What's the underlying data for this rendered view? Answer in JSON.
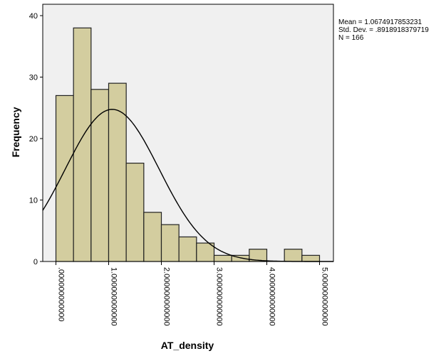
{
  "chart_data": {
    "type": "bar",
    "title": "",
    "xlabel": "AT_density",
    "ylabel": "Frequency",
    "bin_width": 0.33333,
    "bins": [
      {
        "x0": 0.0,
        "x1": 0.33333,
        "count": 27
      },
      {
        "x0": 0.33333,
        "x1": 0.66667,
        "count": 38
      },
      {
        "x0": 0.66667,
        "x1": 1.0,
        "count": 28
      },
      {
        "x0": 1.0,
        "x1": 1.33333,
        "count": 29
      },
      {
        "x0": 1.33333,
        "x1": 1.66667,
        "count": 16
      },
      {
        "x0": 1.66667,
        "x1": 2.0,
        "count": 8
      },
      {
        "x0": 2.0,
        "x1": 2.33333,
        "count": 6
      },
      {
        "x0": 2.33333,
        "x1": 2.66667,
        "count": 4
      },
      {
        "x0": 2.66667,
        "x1": 3.0,
        "count": 3
      },
      {
        "x0": 3.0,
        "x1": 3.33333,
        "count": 1
      },
      {
        "x0": 3.33333,
        "x1": 3.66667,
        "count": 1
      },
      {
        "x0": 3.66667,
        "x1": 4.0,
        "count": 2
      },
      {
        "x0": 4.33333,
        "x1": 4.66667,
        "count": 2
      },
      {
        "x0": 4.66667,
        "x1": 5.0,
        "count": 1
      }
    ],
    "normal_curve": {
      "mean": 1.0674917853231,
      "sd": 0.8918918379719,
      "n": 166
    },
    "xlim": [
      -0.1,
      5.25
    ],
    "ylim": [
      0,
      42
    ],
    "x_ticks": [
      0,
      1,
      2,
      3,
      4,
      5
    ],
    "x_tick_labels": [
      ".000000000000",
      "1.000000000000",
      "2.000000000000",
      "3.000000000000",
      "4.000000000000",
      "5.000000000000"
    ],
    "y_ticks": [
      0,
      10,
      20,
      30,
      40
    ],
    "y_tick_labels": [
      "0",
      "10",
      "20",
      "30",
      "40"
    ],
    "grid": false,
    "legend": "none",
    "stats": {
      "mean": "Mean = 1.0674917853231",
      "sd": "Std. Dev. = .8918918379719",
      "n": "N = 166"
    },
    "colors": {
      "bar_fill": "#d3cd9f",
      "bar_stroke": "#222222",
      "plot_background": "#f0f0f0",
      "curve": "#000000"
    }
  }
}
